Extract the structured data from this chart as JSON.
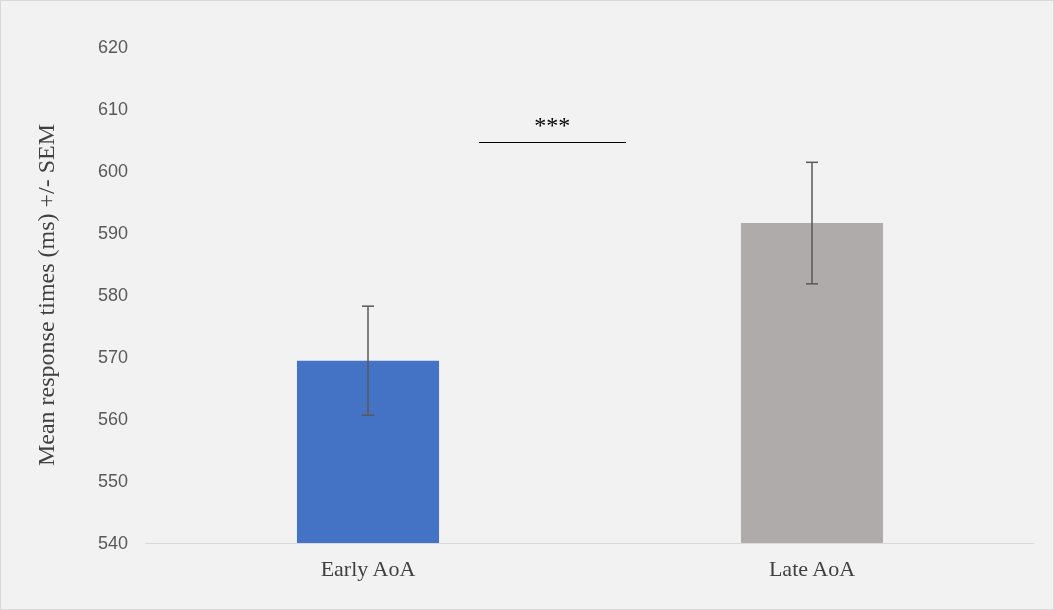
{
  "chart_data": {
    "type": "bar",
    "ylabel": "Mean response times (ms) +/- SEM",
    "categories": [
      "Early AoA",
      "Late AoA"
    ],
    "values": [
      569.4,
      591.6
    ],
    "colors": [
      "#4472c4",
      "#afabab"
    ],
    "errors": [
      8.8,
      9.8
    ],
    "ylim": [
      540,
      620
    ],
    "yticks": [
      540,
      550,
      560,
      570,
      580,
      590,
      600,
      610,
      620
    ],
    "grid": false,
    "annotations": [
      "***"
    ]
  }
}
